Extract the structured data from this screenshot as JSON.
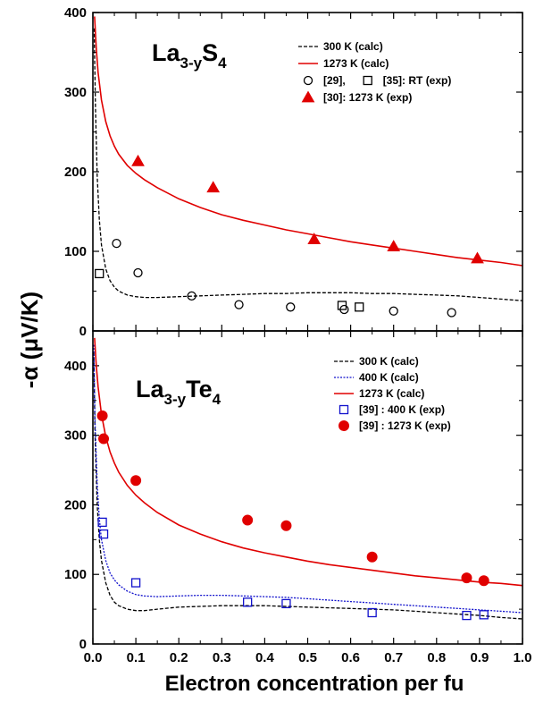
{
  "figure": {
    "xlabel": "Electron concentration per fu",
    "ylabel": "-α (μV/K)"
  },
  "chart_data": [
    {
      "type": "scatter",
      "panel": "top",
      "compound_main": "La",
      "compound_sub1": "3-y",
      "compound_mid": "S",
      "compound_sub2": "4",
      "xlim": [
        0.0,
        1.0
      ],
      "ylim": [
        0,
        400
      ],
      "x_ticks": [
        0.0,
        0.1,
        0.2,
        0.3,
        0.4,
        0.5,
        0.6,
        0.7,
        0.8,
        0.9,
        1.0
      ],
      "x_tick_labels": [
        "0.0",
        "0.1",
        "0.2",
        "0.3",
        "0.4",
        "0.5",
        "0.6",
        "0.7",
        "0.8",
        "0.9",
        "1.0"
      ],
      "y_ticks": [
        0,
        100,
        200,
        300,
        400
      ],
      "y_tick_labels": [
        "0",
        "100",
        "200",
        "300",
        "400"
      ],
      "series": [
        {
          "name": "300 K (calc)",
          "kind": "line",
          "style": "dashed",
          "color": "#000000",
          "x": [
            0.003,
            0.006,
            0.01,
            0.015,
            0.02,
            0.03,
            0.04,
            0.05,
            0.06,
            0.08,
            0.1,
            0.12,
            0.15,
            0.2,
            0.25,
            0.3,
            0.35,
            0.4,
            0.45,
            0.5,
            0.55,
            0.6,
            0.65,
            0.7,
            0.75,
            0.8,
            0.85,
            0.9,
            0.95,
            1.0
          ],
          "y": [
            380,
            280,
            195,
            140,
            108,
            78,
            63,
            55,
            50,
            45,
            43,
            42,
            42,
            43,
            44,
            45,
            46,
            47,
            47,
            48,
            48,
            48,
            47,
            47,
            46,
            45,
            44,
            42,
            40,
            38
          ]
        },
        {
          "name": "1273 K (calc)",
          "kind": "line",
          "style": "solid",
          "color": "#e00000",
          "x": [
            0.004,
            0.008,
            0.012,
            0.02,
            0.03,
            0.04,
            0.05,
            0.06,
            0.08,
            0.1,
            0.12,
            0.15,
            0.2,
            0.25,
            0.3,
            0.35,
            0.4,
            0.45,
            0.5,
            0.55,
            0.6,
            0.65,
            0.7,
            0.75,
            0.8,
            0.85,
            0.9,
            0.95,
            1.0
          ],
          "y": [
            395,
            355,
            325,
            290,
            263,
            245,
            232,
            222,
            208,
            198,
            190,
            180,
            166,
            155,
            146,
            139,
            133,
            127,
            122,
            117,
            112,
            108,
            104,
            100,
            96,
            92,
            89,
            86,
            82
          ]
        },
        {
          "name": "[29],",
          "kind": "points",
          "marker": "circle-open",
          "color": "#000000",
          "x": [
            0.055,
            0.105,
            0.23,
            0.34,
            0.46,
            0.585,
            0.7,
            0.835
          ],
          "y": [
            110,
            73,
            44,
            33,
            30,
            27,
            25,
            23
          ]
        },
        {
          "name": "[35]: RT (exp)",
          "kind": "points",
          "marker": "square-open",
          "color": "#000000",
          "x": [
            0.015,
            0.58,
            0.62
          ],
          "y": [
            72,
            32,
            30
          ]
        },
        {
          "name": "[30]: 1273 K (exp)",
          "kind": "points",
          "marker": "triangle-filled",
          "color": "#e00000",
          "x": [
            0.105,
            0.28,
            0.515,
            0.7,
            0.895
          ],
          "y": [
            213,
            180,
            115,
            106,
            91
          ]
        }
      ],
      "legend": {
        "placement": "top-right",
        "rows": [
          {
            "items": [
              {
                "series": 0,
                "label": "300 K (calc)"
              }
            ]
          },
          {
            "items": [
              {
                "series": 1,
                "label": "1273 K (calc)"
              }
            ]
          },
          {
            "items": [
              {
                "series": 2,
                "label": "[29],"
              },
              {
                "series": 3,
                "label": "[35]: RT (exp)"
              }
            ]
          },
          {
            "items": [
              {
                "series": 4,
                "label": "[30]: 1273 K (exp)"
              }
            ]
          }
        ]
      }
    },
    {
      "type": "scatter",
      "panel": "bottom",
      "compound_main": "La",
      "compound_sub1": "3-y",
      "compound_mid": "Te",
      "compound_sub2": "4",
      "xlim": [
        0.0,
        1.0
      ],
      "ylim": [
        0,
        450
      ],
      "x_ticks": [
        0.0,
        0.1,
        0.2,
        0.3,
        0.4,
        0.5,
        0.6,
        0.7,
        0.8,
        0.9,
        1.0
      ],
      "x_tick_labels": [
        "0.0",
        "0.1",
        "0.2",
        "0.3",
        "0.4",
        "0.5",
        "0.6",
        "0.7",
        "0.8",
        "0.9",
        "1.0"
      ],
      "y_ticks": [
        0,
        100,
        200,
        300,
        400
      ],
      "y_tick_labels": [
        "0",
        "100",
        "200",
        "300",
        "400"
      ],
      "series": [
        {
          "name": "300 K (calc)",
          "kind": "line",
          "style": "dashed",
          "color": "#000000",
          "x": [
            0.002,
            0.005,
            0.01,
            0.015,
            0.02,
            0.03,
            0.04,
            0.05,
            0.06,
            0.08,
            0.1,
            0.12,
            0.15,
            0.2,
            0.25,
            0.3,
            0.35,
            0.4,
            0.45,
            0.5,
            0.55,
            0.6,
            0.65,
            0.7,
            0.75,
            0.8,
            0.85,
            0.9,
            0.95,
            1.0
          ],
          "y": [
            420,
            300,
            200,
            150,
            120,
            88,
            70,
            60,
            55,
            50,
            48,
            48,
            50,
            53,
            54,
            55,
            55,
            55,
            54,
            53,
            52,
            51,
            50,
            49,
            47,
            45,
            43,
            41,
            38,
            36
          ]
        },
        {
          "name": "400 K (calc)",
          "kind": "line",
          "style": "dotted",
          "color": "#1010cc",
          "x": [
            0.002,
            0.005,
            0.01,
            0.015,
            0.02,
            0.03,
            0.04,
            0.05,
            0.06,
            0.08,
            0.1,
            0.12,
            0.15,
            0.2,
            0.25,
            0.3,
            0.35,
            0.4,
            0.45,
            0.5,
            0.55,
            0.6,
            0.65,
            0.7,
            0.75,
            0.8,
            0.85,
            0.9,
            0.95,
            1.0
          ],
          "y": [
            430,
            320,
            230,
            180,
            150,
            120,
            102,
            92,
            85,
            76,
            71,
            69,
            68,
            69,
            70,
            70,
            69,
            68,
            67,
            65,
            63,
            61,
            59,
            57,
            55,
            53,
            51,
            49,
            47,
            45
          ]
        },
        {
          "name": "1273 K (calc)",
          "kind": "line",
          "style": "solid",
          "color": "#e00000",
          "x": [
            0.004,
            0.008,
            0.012,
            0.02,
            0.03,
            0.04,
            0.05,
            0.06,
            0.08,
            0.1,
            0.12,
            0.15,
            0.2,
            0.25,
            0.3,
            0.35,
            0.4,
            0.45,
            0.5,
            0.55,
            0.6,
            0.65,
            0.7,
            0.75,
            0.8,
            0.85,
            0.9,
            0.95,
            1.0
          ],
          "y": [
            440,
            400,
            370,
            330,
            298,
            276,
            260,
            247,
            228,
            214,
            203,
            189,
            171,
            158,
            147,
            138,
            131,
            125,
            119,
            114,
            110,
            106,
            102,
            98,
            95,
            92,
            89,
            87,
            84
          ]
        },
        {
          "name": "[39] : 400 K (exp)",
          "kind": "points",
          "marker": "square-open",
          "color": "#1010cc",
          "x": [
            0.022,
            0.025,
            0.1,
            0.36,
            0.45,
            0.65,
            0.87,
            0.91
          ],
          "y": [
            175,
            158,
            88,
            60,
            58,
            45,
            41,
            42
          ]
        },
        {
          "name": "[39] : 1273 K (exp)",
          "kind": "points",
          "marker": "circle-filled",
          "color": "#e00000",
          "x": [
            0.022,
            0.025,
            0.1,
            0.36,
            0.45,
            0.65,
            0.87,
            0.91
          ],
          "y": [
            328,
            295,
            235,
            178,
            170,
            125,
            95,
            91
          ]
        }
      ],
      "legend": {
        "placement": "top-right",
        "rows": [
          {
            "items": [
              {
                "series": 0,
                "label": "300 K (calc)"
              }
            ]
          },
          {
            "items": [
              {
                "series": 1,
                "label": "400 K (calc)"
              }
            ]
          },
          {
            "items": [
              {
                "series": 2,
                "label": "1273 K (calc)"
              }
            ]
          },
          {
            "items": [
              {
                "series": 3,
                "label": "[39] : 400 K (exp)"
              }
            ]
          },
          {
            "items": [
              {
                "series": 4,
                "label": "[39] : 1273 K (exp)"
              }
            ]
          }
        ]
      }
    }
  ]
}
